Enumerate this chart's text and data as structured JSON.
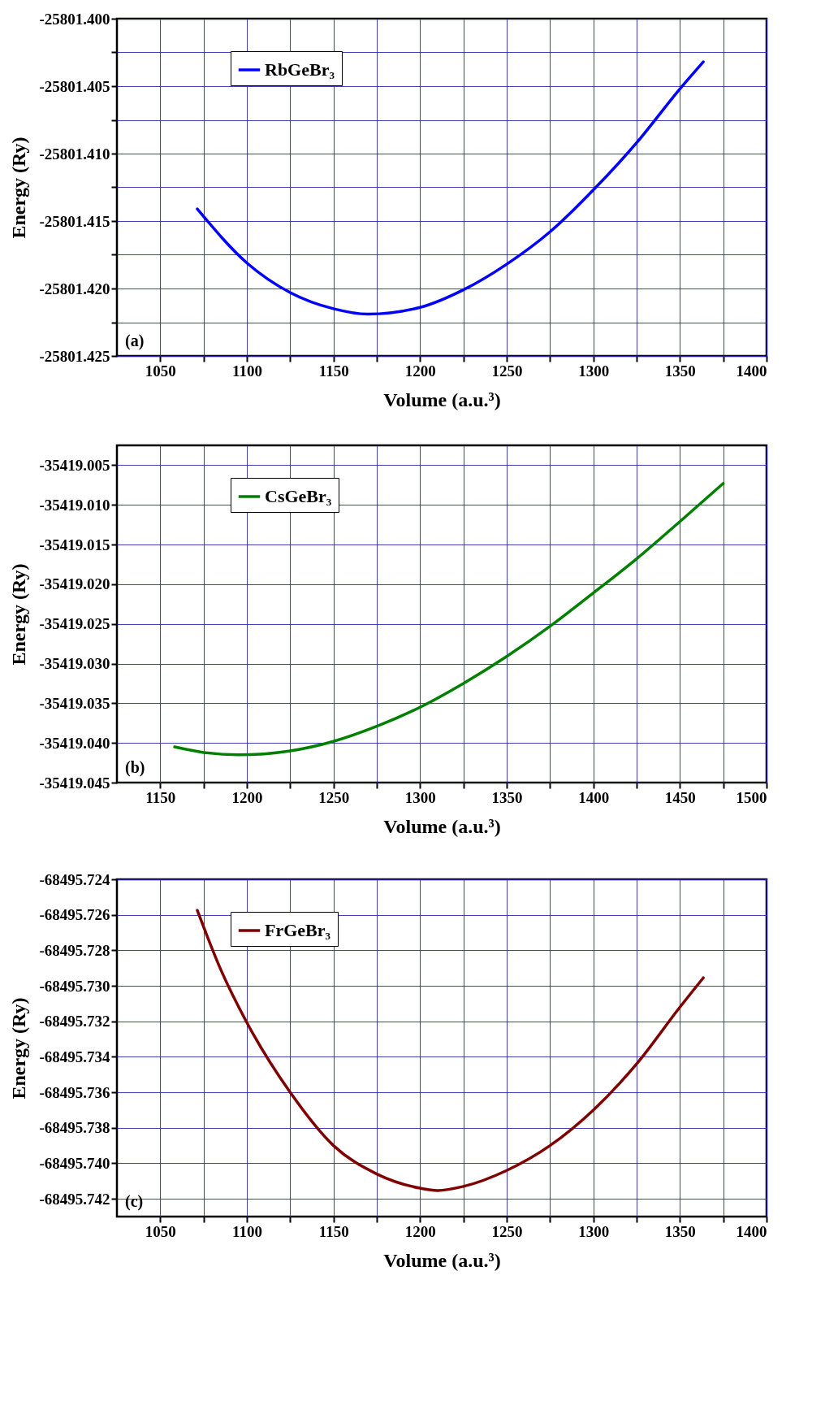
{
  "chart_data": [
    {
      "type": "line",
      "xlabel": "Volume (a.u.³)",
      "ylabel": "Energy (Ry)",
      "annotations": [
        "(a)"
      ],
      "grid": true,
      "legend": "top left",
      "series": [
        {
          "name": "RbGeBr₃",
          "color": "#0000ff",
          "x": [
            1071.4,
            1100,
            1125,
            1150,
            1169.7,
            1200,
            1225,
            1250,
            1275,
            1300,
            1325,
            1350,
            1363.5
          ],
          "values": [
            -25801.4141,
            -25801.4181,
            -25801.4203,
            -25801.4215,
            -25801.4219,
            -25801.4214,
            -25801.4201,
            -25801.4182,
            -25801.4158,
            -25801.4127,
            -25801.4092,
            -25801.4052,
            -25801.4032
          ]
        }
      ],
      "xlim": [
        1025,
        1400
      ],
      "xticks": [
        1050,
        {
          "value": 1075,
          "label": null
        },
        1100,
        {
          "value": 1125,
          "label": null
        },
        1150,
        {
          "value": 1175,
          "label": null
        },
        1200,
        {
          "value": 1225,
          "label": null
        },
        1250,
        {
          "value": 1275,
          "label": null
        },
        1300,
        {
          "value": 1325,
          "label": null
        },
        1350,
        {
          "value": 1375,
          "label": null
        },
        1400
      ],
      "ylim": [
        -25801.425,
        -25801.4
      ],
      "yticks": [
        {
          "value": -25801.425,
          "label": "-25801.425"
        },
        {
          "value": -25801.4225,
          "label": null
        },
        {
          "value": -25801.42,
          "label": "-25801.420"
        },
        {
          "value": -25801.4175,
          "label": null
        },
        {
          "value": -25801.415,
          "label": "-25801.415"
        },
        {
          "value": -25801.4125,
          "label": null
        },
        {
          "value": -25801.41,
          "label": "-25801.410"
        },
        {
          "value": -25801.4075,
          "label": null
        },
        {
          "value": -25801.405,
          "label": "-25801.405"
        },
        {
          "value": -25801.4025,
          "label": null
        },
        {
          "value": -25801.4,
          "label": "-25801.400"
        }
      ]
    },
    {
      "type": "line",
      "xlabel": "Volume (a.u.³)",
      "ylabel": "Energy (Ry)",
      "annotations": [
        "(b)"
      ],
      "grid": true,
      "legend": "top left",
      "series": [
        {
          "name": "CsGeBr₃",
          "color": "#008000",
          "x": [
            1158.3,
            1175,
            1195,
            1225,
            1250,
            1275,
            1300,
            1325,
            1350,
            1375,
            1400,
            1425,
            1450,
            1475
          ],
          "values": [
            -35419.0405,
            -35419.0412,
            -35419.0415,
            -35419.041,
            -35419.0398,
            -35419.0379,
            -35419.0355,
            -35419.0325,
            -35419.0291,
            -35419.0253,
            -35419.0211,
            -35419.0168,
            -35419.0121,
            -35419.0073
          ]
        }
      ],
      "xlim": [
        1125,
        1500
      ],
      "xticks": [
        1150,
        {
          "value": 1175,
          "label": null
        },
        1200,
        {
          "value": 1225,
          "label": null
        },
        1250,
        {
          "value": 1275,
          "label": null
        },
        1300,
        {
          "value": 1325,
          "label": null
        },
        1350,
        {
          "value": 1375,
          "label": null
        },
        1400,
        {
          "value": 1425,
          "label": null
        },
        1450,
        {
          "value": 1475,
          "label": null
        },
        1500
      ],
      "ylim": [
        -35419.045,
        -35419.0025
      ],
      "yticks": [
        {
          "value": -35419.045,
          "label": "-35419.045"
        },
        {
          "value": -35419.04,
          "label": "-35419.040"
        },
        {
          "value": -35419.035,
          "label": "-35419.035"
        },
        {
          "value": -35419.03,
          "label": "-35419.030"
        },
        {
          "value": -35419.025,
          "label": "-35419.025"
        },
        {
          "value": -35419.02,
          "label": "-35419.020"
        },
        {
          "value": -35419.015,
          "label": "-35419.015"
        },
        {
          "value": -35419.01,
          "label": "-35419.010"
        },
        {
          "value": -35419.005,
          "label": "-35419.005"
        }
      ]
    },
    {
      "type": "line",
      "xlabel": "Volume (a.u.³)",
      "ylabel": "Energy (Ry)",
      "annotations": [
        "(c)"
      ],
      "grid": true,
      "legend": "top left",
      "series": [
        {
          "name": "FrGeBr₃",
          "color": "#800000",
          "x": [
            1071.4,
            1085,
            1100,
            1125,
            1150,
            1175,
            1200,
            1210,
            1225,
            1250,
            1275,
            1300,
            1325,
            1350,
            1363.5
          ],
          "values": [
            -68495.72575,
            -68495.7291,
            -68495.73207,
            -68495.736,
            -68495.739,
            -68495.7406,
            -68495.7414,
            -68495.74153,
            -68495.7413,
            -68495.7404,
            -68495.739,
            -68495.737,
            -68495.7344,
            -68495.7312,
            -68495.72955
          ]
        }
      ],
      "xlim": [
        1025,
        1400
      ],
      "xticks": [
        1050,
        {
          "value": 1075,
          "label": null
        },
        1100,
        {
          "value": 1125,
          "label": null
        },
        1150,
        {
          "value": 1175,
          "label": null
        },
        1200,
        {
          "value": 1225,
          "label": null
        },
        1250,
        {
          "value": 1275,
          "label": null
        },
        1300,
        {
          "value": 1325,
          "label": null
        },
        1350,
        {
          "value": 1375,
          "label": null
        },
        1400
      ],
      "ylim": [
        -68495.743,
        -68495.724
      ],
      "yticks": [
        {
          "value": -68495.742,
          "label": "-68495.742"
        },
        {
          "value": -68495.74,
          "label": "-68495.740"
        },
        {
          "value": -68495.738,
          "label": "-68495.738"
        },
        {
          "value": -68495.736,
          "label": "-68495.736"
        },
        {
          "value": -68495.734,
          "label": "-68495.734"
        },
        {
          "value": -68495.732,
          "label": "-68495.732"
        },
        {
          "value": -68495.73,
          "label": "-68495.730"
        },
        {
          "value": -68495.728,
          "label": "-68495.728"
        },
        {
          "value": -68495.726,
          "label": "-68495.726"
        },
        {
          "value": -68495.724,
          "label": "-68495.724"
        }
      ]
    }
  ]
}
